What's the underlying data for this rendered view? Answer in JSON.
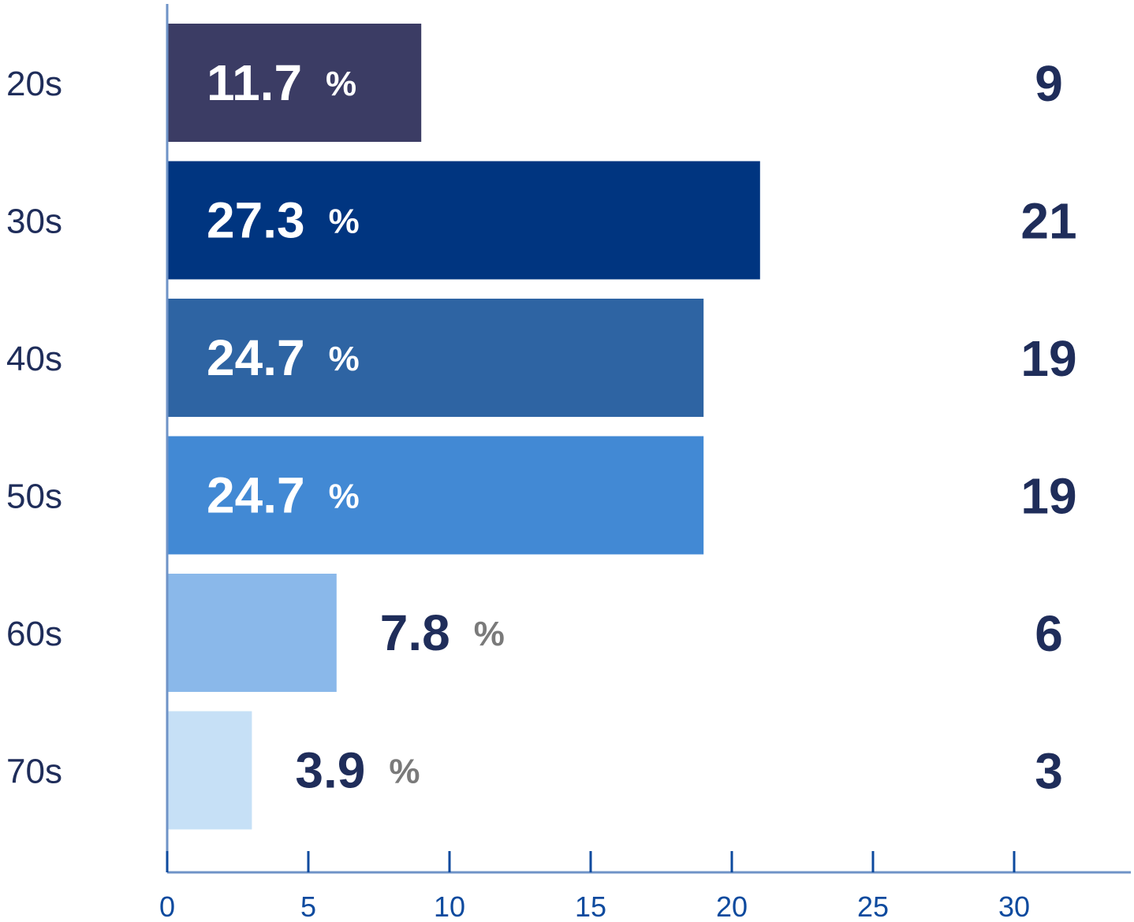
{
  "chart_data": {
    "type": "bar",
    "orientation": "horizontal",
    "categories": [
      "20s",
      "30s",
      "40s",
      "50s",
      "60s",
      "70s"
    ],
    "values": [
      9,
      21,
      19,
      19,
      6,
      3
    ],
    "percent_labels": [
      "11.7",
      "27.3",
      "24.7",
      "24.7",
      "7.8",
      "3.9"
    ],
    "percent_sign": "%",
    "count_labels": [
      "9",
      "21",
      "19",
      "19",
      "6",
      "3"
    ],
    "xlim": [
      0,
      34
    ],
    "xticks": [
      "0",
      "5",
      "10",
      "15",
      "20",
      "25",
      "30"
    ],
    "grid": false,
    "colors": [
      "#3b3c64",
      "#003580",
      "#2e64a3",
      "#4289d4",
      "#8ab8ea",
      "#c6e0f6"
    ],
    "highlight_category": "30s"
  }
}
